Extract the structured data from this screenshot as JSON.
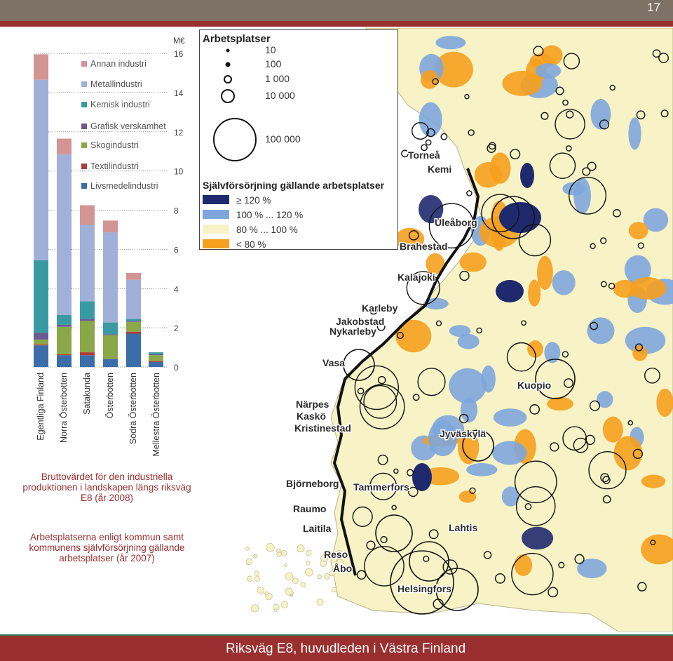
{
  "page": {
    "number": "17",
    "footer_title": "Riksväg E8, huvudleden i Västra Finland"
  },
  "chart_data": {
    "type": "bar",
    "stacked": true,
    "title": "Bruttovärdet för den industriella produktionen i landskapen längs riksväg E8 (år 2008)",
    "unit_label": "M€",
    "ylim": [
      0,
      16
    ],
    "yticks": [
      "0",
      "2",
      "4",
      "6",
      "8",
      "10",
      "12",
      "14",
      "16"
    ],
    "categories": [
      "Egentliga Finland",
      "Norra Österbotten",
      "Satakunda",
      "Österbotten",
      "Södrä Österbotten",
      "Mellestra Österbotten"
    ],
    "series": [
      {
        "name": "Livsmedelindustri",
        "color": "#3b6ea8",
        "values": [
          1.1,
          0.6,
          0.6,
          0.4,
          1.7,
          0.25
        ]
      },
      {
        "name": "Textilindustri",
        "color": "#b03b3b",
        "values": [
          0.05,
          0.05,
          0.15,
          0.02,
          0.1,
          0.05
        ]
      },
      {
        "name": "Skogindustri",
        "color": "#8aa848",
        "values": [
          0.25,
          1.4,
          1.6,
          1.2,
          0.5,
          0.3
        ]
      },
      {
        "name": "Grafisk verskamhet",
        "color": "#6b5a93",
        "values": [
          0.35,
          0.1,
          0.1,
          0.05,
          0.05,
          0.05
        ]
      },
      {
        "name": "Kemisk industri",
        "color": "#3a9aa4",
        "values": [
          3.7,
          0.5,
          0.9,
          0.6,
          0.1,
          0.1
        ]
      },
      {
        "name": "Metallindustri",
        "color": "#a0b0d8",
        "values": [
          9.2,
          8.2,
          3.9,
          4.6,
          2.0,
          0.0
        ]
      },
      {
        "name": "Annan industri",
        "color": "#d39494",
        "values": [
          1.3,
          0.8,
          1.0,
          0.6,
          0.35,
          0.0
        ]
      }
    ]
  },
  "map": {
    "caption": "Arbetsplatserna enligt kommun samt kommunens självförsörjning gällande arbetsplatser (år 2007)",
    "legend_title": "Arbetsplatser",
    "size_legend": [
      "10",
      "100",
      "1 000",
      "10 000",
      "100 000"
    ],
    "selfsuff_title": "Självförsörjning gällande arbetsplatser",
    "selfsuff": [
      {
        "label": "≥ 120 %",
        "color": "#1f2a6e"
      },
      {
        "label": "100 % ... 120 %",
        "color": "#7ea6dc"
      },
      {
        "label": "80 % ... 100 %",
        "color": "#f7f3c6"
      },
      {
        "label": "< 80 %",
        "color": "#f5a01e"
      }
    ],
    "cities": [
      "Torneå",
      "Kemi",
      "Uleåborg",
      "Brahestad",
      "Kalajoki",
      "Karleby",
      "Jakobstad",
      "Nykarleby",
      "Vasa",
      "Kuopio",
      "Närpes",
      "Kaskö",
      "Kristinestad",
      "Jyväskylä",
      "Björneborg",
      "Tammerfors",
      "Raumo",
      "Laitila",
      "Lahtis",
      "Reso",
      "Åbo",
      "Helsingfors"
    ]
  }
}
